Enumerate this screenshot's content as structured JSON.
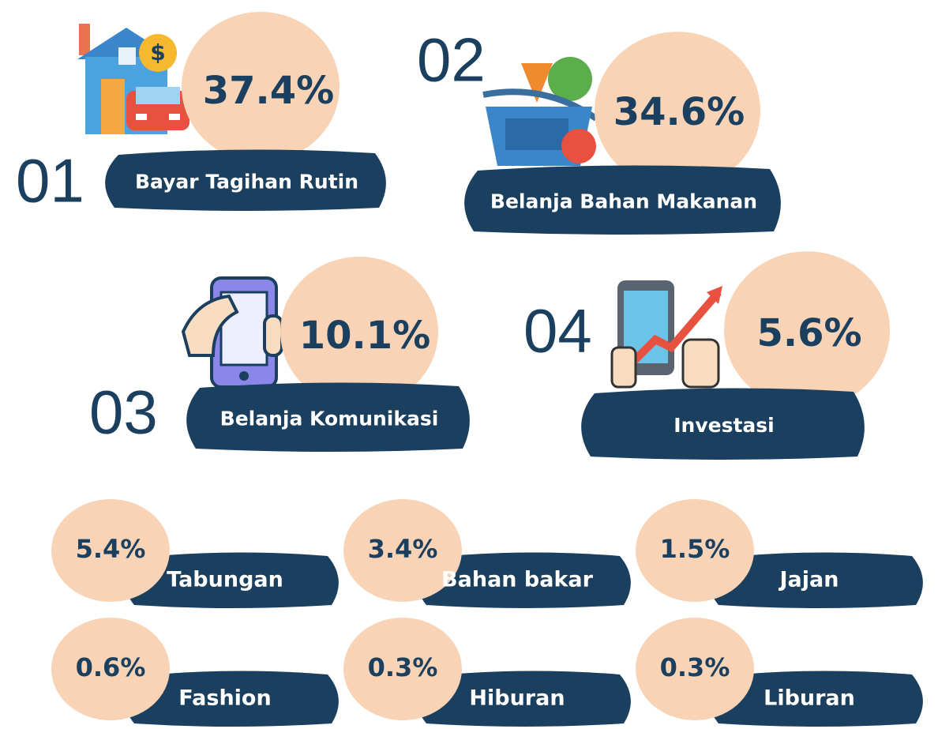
{
  "main_items": [
    {
      "number": "01",
      "percent": "37.4%",
      "label": "Bayar Tagihan Rutin"
    },
    {
      "number": "02",
      "percent": "34.6%",
      "label": "Belanja Bahan Makanan"
    },
    {
      "number": "03",
      "percent": "10.1%",
      "label": "Belanja Komunikasi"
    },
    {
      "number": "04",
      "percent": "5.6%",
      "label": "Investasi"
    }
  ],
  "other_items": [
    {
      "percent": "5.4%",
      "label": "Tabungan"
    },
    {
      "percent": "3.4%",
      "label": "Bahan bakar"
    },
    {
      "percent": "1.5%",
      "label": "Jajan"
    },
    {
      "percent": "0.6%",
      "label": "Fashion"
    },
    {
      "percent": "0.3%",
      "label": "Hiburan"
    },
    {
      "percent": "0.3%",
      "label": "Liburan"
    }
  ]
}
